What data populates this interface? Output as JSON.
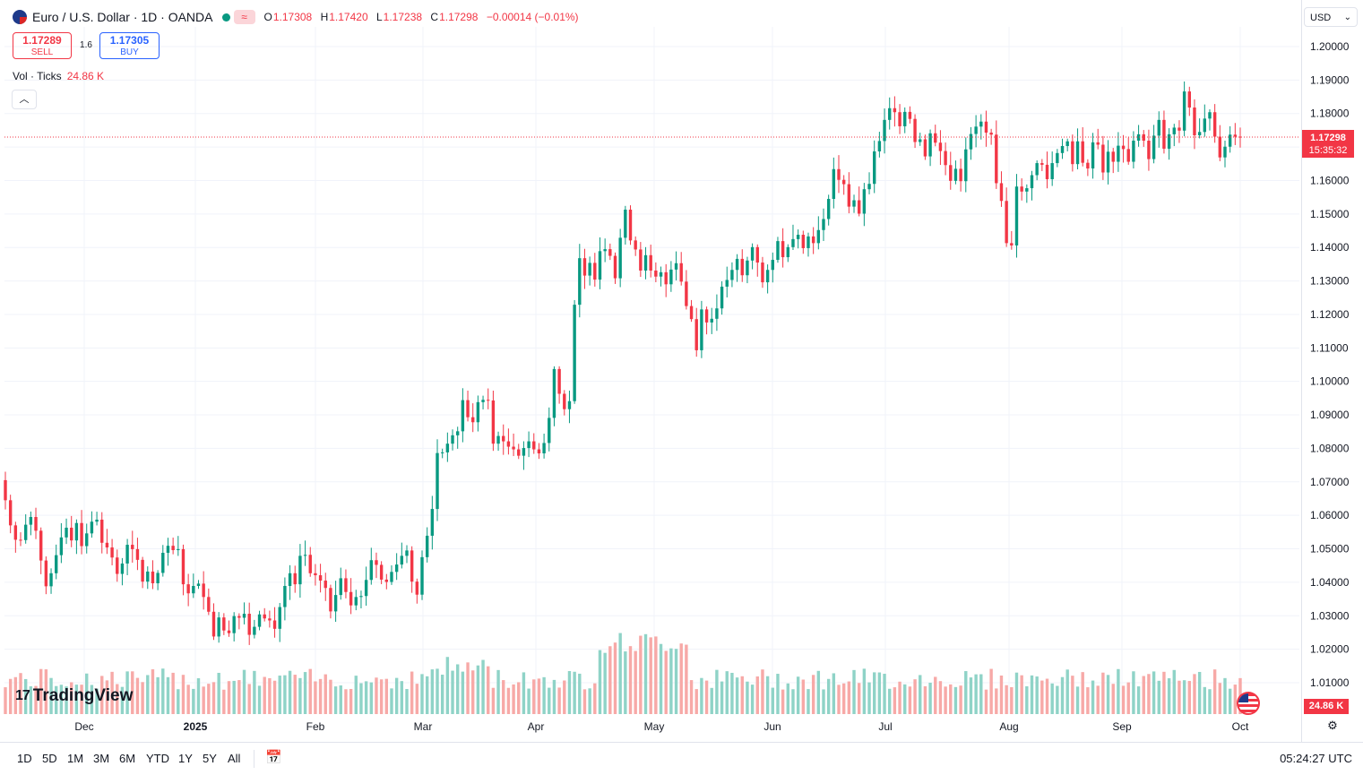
{
  "header": {
    "symbol": "Euro / U.S. Dollar · 1D · OANDA",
    "badge": "≈",
    "ohlc": {
      "o_label": "O",
      "o": "1.17308",
      "h_label": "H",
      "h": "1.17420",
      "l_label": "L",
      "l": "1.17238",
      "c_label": "C",
      "c": "1.17298",
      "change": "−0.00014 (−0.01%)"
    }
  },
  "trade": {
    "sell_price": "1.17289",
    "sell_label": "SELL",
    "spread": "1.6",
    "buy_price": "1.17305",
    "buy_label": "BUY"
  },
  "volume_legend": {
    "label": "Vol · Ticks",
    "value": "24.86 K"
  },
  "collapse_icon": "chevron-up-icon",
  "currency": "USD",
  "last_price": {
    "price": "1.17298",
    "countdown": "15:35:32"
  },
  "volume_last": "24.86 K",
  "logo_text": "TradingView",
  "timeframes": [
    "1D",
    "5D",
    "1M",
    "3M",
    "6M",
    "YTD",
    "1Y",
    "5Y",
    "All"
  ],
  "clock": "05:24:27 UTC",
  "colors": {
    "up": "#089981",
    "down": "#f23645",
    "vol_up": "#8fd3c7",
    "vol_down": "#f7a9a7",
    "grid": "#f0f3fa"
  },
  "chart_data": {
    "type": "candlestick",
    "y_axis_ticks": [
      "1.20000",
      "1.19000",
      "1.18000",
      "1.17000",
      "1.16000",
      "1.15000",
      "1.14000",
      "1.13000",
      "1.12000",
      "1.11000",
      "1.10000",
      "1.09000",
      "1.08000",
      "1.07000",
      "1.06000",
      "1.05000",
      "1.04000",
      "1.03000",
      "1.02000",
      "1.01000"
    ],
    "ylim": [
      1.005,
      1.205
    ],
    "x_axis_labels": [
      "Dec",
      "2025",
      "Feb",
      "Mar",
      "Apr",
      "May",
      "Jun",
      "Jul",
      "Aug",
      "Sep",
      "Oct"
    ],
    "series": [
      {
        "name": "EURUSD",
        "type": "candlestick",
        "close": [
          1.0645,
          1.057,
          1.0527,
          1.0526,
          1.0572,
          1.0595,
          1.0554,
          1.0465,
          1.0388,
          1.0427,
          1.0481,
          1.0534,
          1.0563,
          1.0525,
          1.0577,
          1.0508,
          1.0546,
          1.0581,
          1.0587,
          1.0518,
          1.0504,
          1.0474,
          1.0425,
          1.0456,
          1.0512,
          1.0499,
          1.0467,
          1.0402,
          1.0432,
          1.0397,
          1.0428,
          1.0488,
          1.0509,
          1.0496,
          1.0499,
          1.0394,
          1.0367,
          1.0389,
          1.0396,
          1.0356,
          1.0312,
          1.0238,
          1.0295,
          1.0256,
          1.0248,
          1.0299,
          1.0294,
          1.0306,
          1.0243,
          1.0267,
          1.0304,
          1.0292,
          1.0286,
          1.0261,
          1.0326,
          1.0389,
          1.0427,
          1.0394,
          1.0479,
          1.0482,
          1.0427,
          1.0421,
          1.0405,
          1.0383,
          1.0313,
          1.0362,
          1.0412,
          1.0371,
          1.0331,
          1.0356,
          1.0359,
          1.0407,
          1.0466,
          1.0452,
          1.0408,
          1.0401,
          1.0431,
          1.0453,
          1.0479,
          1.0495,
          1.0402,
          1.0363,
          1.0475,
          1.0539,
          1.0619,
          1.0786,
          1.0788,
          1.0814,
          1.0839,
          1.0851,
          1.0944,
          1.0893,
          1.0878,
          1.0938,
          1.0945,
          1.0943,
          1.0814,
          1.0837,
          1.0821,
          1.0805,
          1.0797,
          1.0778,
          1.0801,
          1.0821,
          1.0797,
          1.0785,
          1.0816,
          1.0891,
          1.1037,
          1.0963,
          1.0917,
          1.0941,
          1.1229,
          1.1368,
          1.1316,
          1.1354,
          1.1304,
          1.1389,
          1.1395,
          1.1375,
          1.1308,
          1.1429,
          1.1513,
          1.1421,
          1.1394,
          1.1331,
          1.1377,
          1.1331,
          1.1313,
          1.1326,
          1.129,
          1.1334,
          1.1353,
          1.1298,
          1.1225,
          1.1186,
          1.1093,
          1.1215,
          1.1176,
          1.1187,
          1.1218,
          1.1283,
          1.1303,
          1.1333,
          1.1366,
          1.1317,
          1.1361,
          1.1401,
          1.1355,
          1.1296,
          1.1333,
          1.1363,
          1.1419,
          1.1371,
          1.1401,
          1.1425,
          1.1438,
          1.1398,
          1.1433,
          1.1413,
          1.1452,
          1.1485,
          1.1545,
          1.1634,
          1.1602,
          1.1589,
          1.1522,
          1.1541,
          1.1501,
          1.1574,
          1.159,
          1.1687,
          1.1718,
          1.1781,
          1.1816,
          1.1804,
          1.1762,
          1.1805,
          1.1784,
          1.1715,
          1.1723,
          1.1672,
          1.1741,
          1.1713,
          1.1688,
          1.1646,
          1.1599,
          1.1635,
          1.1598,
          1.1693,
          1.1739,
          1.1761,
          1.1776,
          1.1743,
          1.1737,
          1.1592,
          1.1539,
          1.1413,
          1.1406,
          1.1582,
          1.1567,
          1.1577,
          1.1616,
          1.1652,
          1.1647,
          1.1604,
          1.1652,
          1.1682,
          1.1703,
          1.1717,
          1.1649,
          1.1717,
          1.1653,
          1.1636,
          1.1714,
          1.1707,
          1.1624,
          1.1686,
          1.1656,
          1.1704,
          1.1694,
          1.1656,
          1.1719,
          1.1738,
          1.1719,
          1.1664,
          1.1734,
          1.1781,
          1.1695,
          1.1738,
          1.1758,
          1.1749,
          1.1866,
          1.1818,
          1.1735,
          1.1745,
          1.1785,
          1.1804,
          1.1731,
          1.1669,
          1.1701,
          1.1737,
          1.1731,
          1.173
        ]
      }
    ],
    "legend": "Vol · Ticks 24.86 K"
  }
}
